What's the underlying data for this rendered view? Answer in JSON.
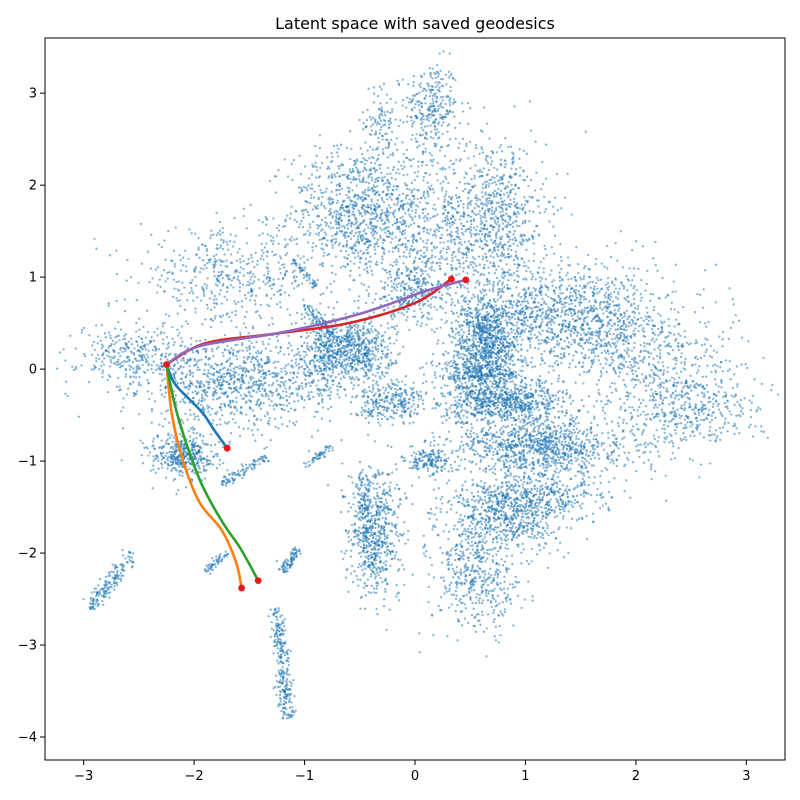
{
  "chart_data": {
    "type": "scatter",
    "title": "Latent space with saved geodesics",
    "xlabel": "",
    "ylabel": "",
    "xlim": [
      -3.35,
      3.35
    ],
    "ylim": [
      -4.25,
      3.6
    ],
    "x_ticks": [
      -3,
      -2,
      -1,
      0,
      1,
      2,
      3
    ],
    "y_ticks": [
      -4,
      -3,
      -2,
      -1,
      0,
      1,
      2,
      3
    ],
    "grid": false,
    "legend": "none",
    "point_color": "#1f77b4",
    "clusters": [
      {
        "cx": 0.15,
        "cy": 2.85,
        "sx": 0.12,
        "sy": 0.25,
        "n": 260
      },
      {
        "cx": -0.3,
        "cy": 2.7,
        "sx": 0.08,
        "sy": 0.2,
        "n": 90
      },
      {
        "cx": -0.55,
        "cy": 1.7,
        "sx": 0.3,
        "sy": 0.35,
        "n": 800
      },
      {
        "cx": 0.1,
        "cy": 1.6,
        "sx": 0.35,
        "sy": 0.5,
        "n": 700
      },
      {
        "cx": 0.75,
        "cy": 1.6,
        "sx": 0.22,
        "sy": 0.45,
        "n": 650
      },
      {
        "cx": 0.0,
        "cy": 0.85,
        "sx": 0.2,
        "sy": 0.15,
        "n": 250
      },
      {
        "cx": -1.7,
        "cy": 1.0,
        "sx": 0.4,
        "sy": 0.25,
        "n": 450
      },
      {
        "cx": -2.55,
        "cy": 0.15,
        "sx": 0.25,
        "sy": 0.18,
        "n": 320
      },
      {
        "cx": -1.6,
        "cy": -0.15,
        "sx": 0.4,
        "sy": 0.25,
        "n": 900
      },
      {
        "cx": -0.55,
        "cy": 0.2,
        "sx": 0.18,
        "sy": 0.18,
        "n": 600
      },
      {
        "cx": -0.85,
        "cy": 0.15,
        "sx": 0.12,
        "sy": 0.25,
        "n": 250
      },
      {
        "cx": -0.35,
        "cy": -0.35,
        "sx": 0.1,
        "sy": 0.12,
        "n": 150
      },
      {
        "cx": 0.65,
        "cy": 0.35,
        "sx": 0.15,
        "sy": 0.22,
        "n": 700
      },
      {
        "cx": 1.45,
        "cy": 0.55,
        "sx": 0.45,
        "sy": 0.3,
        "n": 1300
      },
      {
        "cx": 2.3,
        "cy": -0.15,
        "sx": 0.35,
        "sy": 0.35,
        "n": 500
      },
      {
        "cx": 2.55,
        "cy": -0.5,
        "sx": 0.3,
        "sy": 0.15,
        "n": 200
      },
      {
        "cx": 0.8,
        "cy": -0.35,
        "sx": 0.28,
        "sy": 0.12,
        "n": 800
      },
      {
        "cx": 0.55,
        "cy": 0.0,
        "sx": 0.18,
        "sy": 0.1,
        "n": 300
      },
      {
        "cx": 1.15,
        "cy": -0.85,
        "sx": 0.4,
        "sy": 0.18,
        "n": 1100
      },
      {
        "cx": 0.85,
        "cy": -1.6,
        "sx": 0.3,
        "sy": 0.18,
        "n": 600
      },
      {
        "cx": 0.55,
        "cy": -2.25,
        "sx": 0.2,
        "sy": 0.3,
        "n": 450
      },
      {
        "cx": -0.35,
        "cy": -1.75,
        "sx": 0.12,
        "sy": 0.35,
        "n": 550
      },
      {
        "cx": 0.1,
        "cy": -1.0,
        "sx": 0.1,
        "sy": 0.08,
        "n": 150
      },
      {
        "cx": -0.1,
        "cy": -0.35,
        "sx": 0.08,
        "sy": 0.12,
        "n": 120
      },
      {
        "cx": -2.1,
        "cy": -0.95,
        "sx": 0.15,
        "sy": 0.12,
        "n": 400
      },
      {
        "cx": 1.1,
        "cy": -1.4,
        "sx": 0.35,
        "sy": 0.1,
        "n": 300
      }
    ],
    "streaks": [
      {
        "x0": -1.25,
        "y0": -2.6,
        "x1": -1.15,
        "y1": -3.8,
        "w": 0.035,
        "n": 260
      },
      {
        "x0": -2.55,
        "y0": -2.0,
        "x1": -2.95,
        "y1": -2.6,
        "w": 0.04,
        "n": 160
      },
      {
        "x0": -1.2,
        "y0": -2.2,
        "x1": -1.05,
        "y1": -1.95,
        "w": 0.03,
        "n": 80
      },
      {
        "x0": -1.75,
        "y0": -1.25,
        "x1": -1.35,
        "y1": -0.95,
        "w": 0.025,
        "n": 90
      },
      {
        "x0": -1.0,
        "y0": -1.05,
        "x1": -0.75,
        "y1": -0.85,
        "w": 0.02,
        "n": 50
      },
      {
        "x0": -1.9,
        "y0": -2.2,
        "x1": -1.7,
        "y1": -2.0,
        "w": 0.025,
        "n": 50
      },
      {
        "x0": -1.1,
        "y0": 1.2,
        "x1": -0.9,
        "y1": 0.9,
        "w": 0.02,
        "n": 50
      },
      {
        "x0": -1.0,
        "y0": 0.7,
        "x1": -0.7,
        "y1": 0.3,
        "w": 0.025,
        "n": 90
      },
      {
        "x0": -0.5,
        "y0": -1.15,
        "x1": -0.4,
        "y1": -2.2,
        "w": 0.05,
        "n": 140
      },
      {
        "x0": 0.3,
        "y0": -0.1,
        "x1": 0.9,
        "y1": -0.05,
        "w": 0.02,
        "n": 80
      }
    ],
    "geodesics": [
      {
        "color": "#1f77b4",
        "points": [
          [
            -2.25,
            0.05
          ],
          [
            -2.18,
            -0.15
          ],
          [
            -2.05,
            -0.32
          ],
          [
            -1.92,
            -0.48
          ],
          [
            -1.82,
            -0.66
          ],
          [
            -1.7,
            -0.86
          ]
        ]
      },
      {
        "color": "#ff7f0e",
        "points": [
          [
            -2.25,
            0.05
          ],
          [
            -2.2,
            -0.5
          ],
          [
            -2.1,
            -1.0
          ],
          [
            -1.95,
            -1.45
          ],
          [
            -1.75,
            -1.75
          ],
          [
            -1.62,
            -2.1
          ],
          [
            -1.57,
            -2.38
          ]
        ]
      },
      {
        "color": "#2ca02c",
        "points": [
          [
            -2.25,
            0.05
          ],
          [
            -2.15,
            -0.5
          ],
          [
            -1.95,
            -1.2
          ],
          [
            -1.75,
            -1.65
          ],
          [
            -1.58,
            -1.95
          ],
          [
            -1.42,
            -2.3
          ]
        ]
      },
      {
        "color": "#d62728",
        "points": [
          [
            -2.25,
            0.05
          ],
          [
            -1.9,
            0.28
          ],
          [
            -1.3,
            0.38
          ],
          [
            -0.6,
            0.5
          ],
          [
            0.0,
            0.72
          ],
          [
            0.33,
            0.98
          ]
        ]
      },
      {
        "color": "#9467bd",
        "points": [
          [
            -2.25,
            0.05
          ],
          [
            -1.95,
            0.25
          ],
          [
            -1.2,
            0.4
          ],
          [
            -0.5,
            0.6
          ],
          [
            0.1,
            0.85
          ],
          [
            0.46,
            0.97
          ]
        ]
      }
    ],
    "endpoints": [
      [
        -2.25,
        0.05
      ],
      [
        -1.7,
        -0.86
      ],
      [
        -1.57,
        -2.38
      ],
      [
        -1.42,
        -2.3
      ],
      [
        0.33,
        0.98
      ],
      [
        0.46,
        0.97
      ]
    ],
    "endpoint_color": "#e8191a"
  }
}
